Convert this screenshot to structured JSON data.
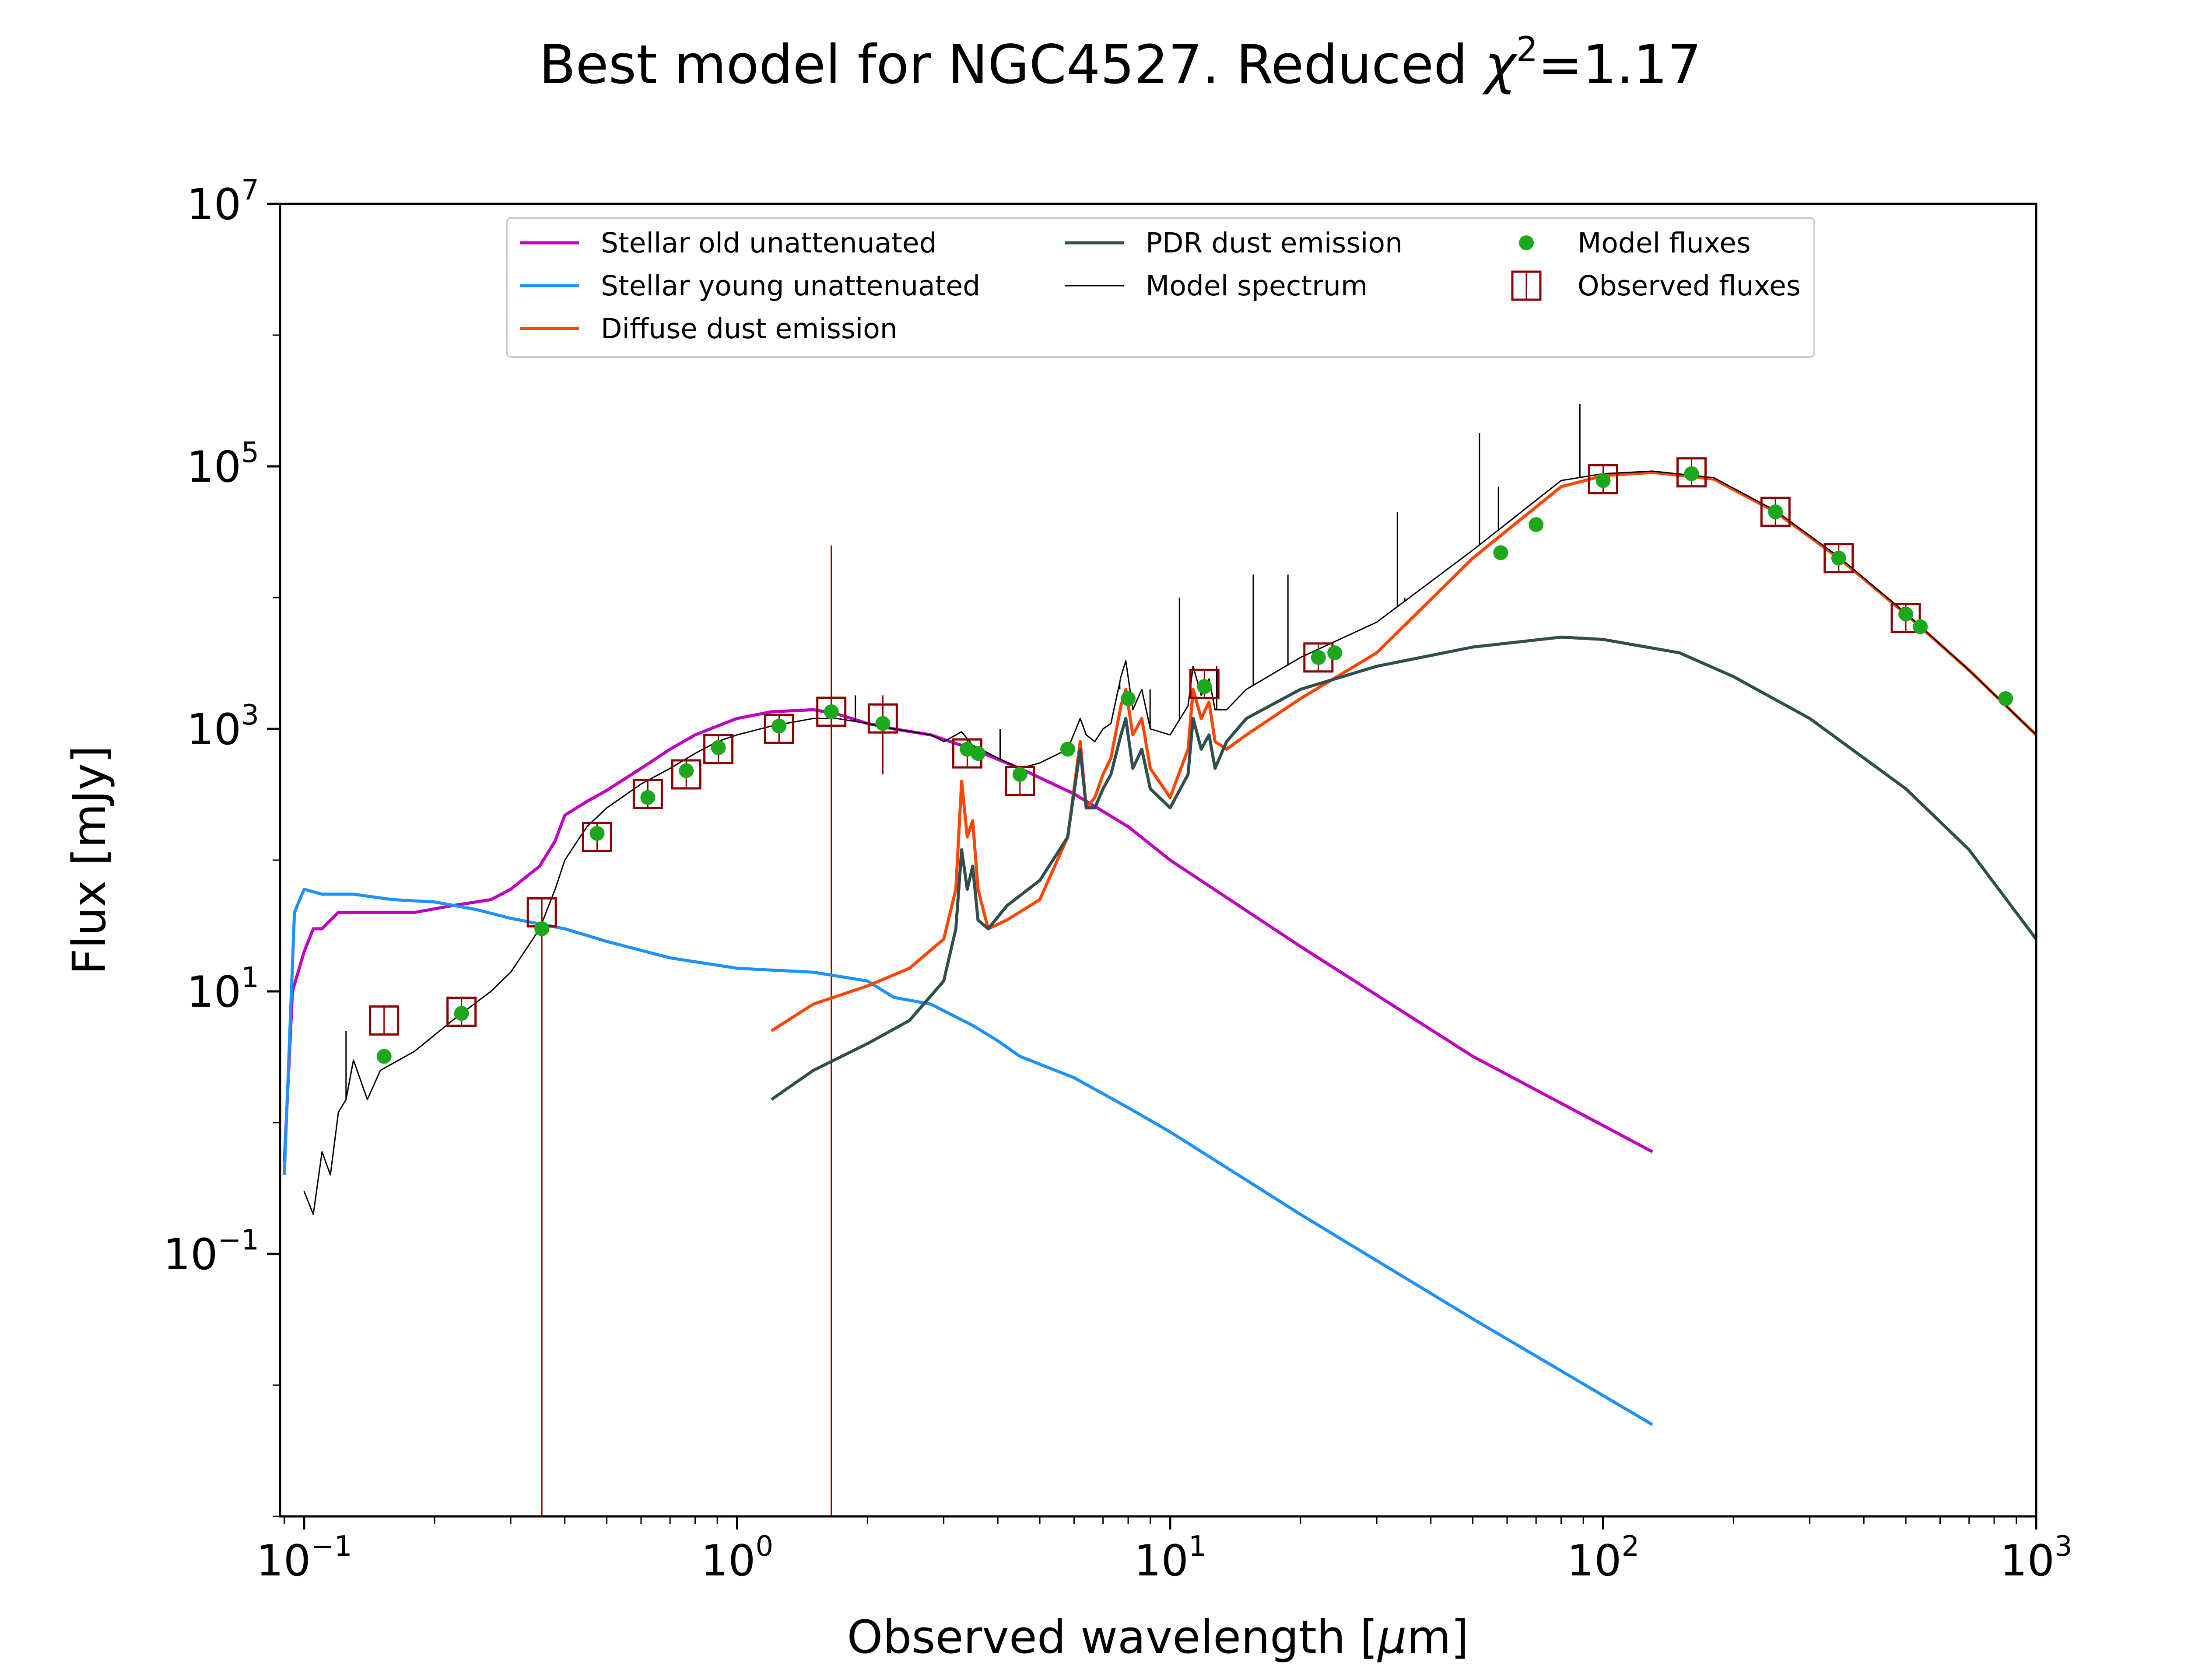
{
  "chart_data": {
    "type": "line",
    "title": "Best model for NGC4527. Reduced χ²=1.17",
    "title_parts": {
      "prefix": "Best model for NGC4527. Reduced ",
      "chi": "χ",
      "sup": "2",
      "suffix": "=1.17"
    },
    "xlabel": "Observed wavelength [μm]",
    "xlabel_parts": {
      "prefix": "Observed wavelength [",
      "mu": "μ",
      "suffix": "m]"
    },
    "ylabel": "Flux [mJy]",
    "xscale": "log",
    "yscale": "log",
    "xlim": [
      0.088,
      1000
    ],
    "ylim": [
      0.001,
      10000000
    ],
    "grid": false,
    "legend_position": "upper center",
    "x_ticks": [
      {
        "value": 0.1,
        "base": "10",
        "exp": "−1"
      },
      {
        "value": 1,
        "base": "10",
        "exp": "0"
      },
      {
        "value": 10,
        "base": "10",
        "exp": "1"
      },
      {
        "value": 100,
        "base": "10",
        "exp": "2"
      },
      {
        "value": 1000,
        "base": "10",
        "exp": "3"
      }
    ],
    "y_ticks": [
      {
        "value": 0.1,
        "base": "10",
        "exp": "−1"
      },
      {
        "value": 10,
        "base": "10",
        "exp": "1"
      },
      {
        "value": 1000,
        "base": "10",
        "exp": "3"
      },
      {
        "value": 100000,
        "base": "10",
        "exp": "5"
      },
      {
        "value": 10000000,
        "base": "10",
        "exp": "7"
      }
    ],
    "legend": [
      {
        "label": "Stellar old unattenuated",
        "kind": "line",
        "color": "#bf00bf"
      },
      {
        "label": "Stellar young unattenuated",
        "kind": "line",
        "color": "#1e90ff"
      },
      {
        "label": "Diffuse dust emission",
        "kind": "line",
        "color": "#ff4500"
      },
      {
        "label": "PDR dust emission",
        "kind": "line",
        "color": "#2f4f4f"
      },
      {
        "label": "Model spectrum",
        "kind": "thin-line",
        "color": "#000000"
      },
      {
        "label": "Model fluxes",
        "kind": "dot",
        "color": "#1ca81c"
      },
      {
        "label": "Observed fluxes",
        "kind": "square",
        "color": "#8b0000"
      }
    ],
    "series": [
      {
        "name": "Stellar old unattenuated",
        "color": "#bf00bf",
        "x": [
          0.09,
          0.094,
          0.1,
          0.105,
          0.11,
          0.12,
          0.13,
          0.15,
          0.18,
          0.22,
          0.27,
          0.3,
          0.35,
          0.38,
          0.4,
          0.45,
          0.5,
          0.6,
          0.7,
          0.8,
          0.9,
          1.0,
          1.2,
          1.5,
          1.7,
          2.0,
          2.3,
          2.8,
          3.5,
          4.5,
          6,
          8,
          10,
          20,
          50,
          130
        ],
        "y": [
          0.5,
          10,
          20,
          30,
          30,
          40,
          40,
          40,
          40,
          45,
          50,
          60,
          90,
          140,
          220,
          280,
          340,
          500,
          700,
          900,
          1050,
          1200,
          1350,
          1400,
          1300,
          1100,
          1000,
          900,
          700,
          500,
          320,
          180,
          100,
          22,
          3.2,
          0.6
        ]
      },
      {
        "name": "Stellar young unattenuated",
        "color": "#1e90ff",
        "x": [
          0.09,
          0.095,
          0.1,
          0.11,
          0.13,
          0.16,
          0.2,
          0.25,
          0.3,
          0.4,
          0.5,
          0.7,
          1.0,
          1.5,
          2.0,
          2.3,
          2.8,
          3.5,
          4.0,
          4.5,
          6,
          8,
          10,
          20,
          50,
          130
        ],
        "y": [
          0.4,
          40,
          60,
          55,
          55,
          50,
          48,
          42,
          36,
          30,
          24,
          18,
          15,
          14,
          12,
          9,
          8,
          5.5,
          4.2,
          3.2,
          2.2,
          1.3,
          0.85,
          0.2,
          0.032,
          0.005
        ]
      },
      {
        "name": "Diffuse dust emission",
        "color": "#ff4500",
        "x": [
          1.2,
          1.5,
          2.0,
          2.5,
          3.0,
          3.2,
          3.3,
          3.4,
          3.5,
          3.6,
          3.8,
          4.2,
          5.0,
          5.8,
          6.2,
          6.4,
          6.7,
          7.0,
          7.3,
          7.7,
          7.9,
          8.2,
          8.6,
          9.0,
          10.0,
          11.0,
          11.3,
          11.8,
          12.3,
          12.7,
          13.5,
          15,
          20,
          30,
          50,
          80,
          100,
          130,
          180,
          250,
          350,
          500,
          700,
          1000
        ],
        "y": [
          5,
          8,
          11,
          15,
          25,
          60,
          400,
          150,
          200,
          60,
          30,
          35,
          50,
          150,
          800,
          250,
          300,
          450,
          600,
          1500,
          2000,
          900,
          1200,
          500,
          300,
          700,
          2000,
          1200,
          1600,
          800,
          700,
          900,
          1700,
          3800,
          20000,
          70000,
          85000,
          90000,
          80000,
          45000,
          20000,
          7500,
          2800,
          900
        ]
      },
      {
        "name": "PDR dust emission",
        "color": "#2f4f4f",
        "x": [
          1.2,
          1.5,
          2.0,
          2.5,
          3.0,
          3.2,
          3.3,
          3.4,
          3.5,
          3.6,
          3.8,
          4.2,
          5.0,
          5.8,
          6.2,
          6.4,
          6.7,
          7.0,
          7.3,
          7.7,
          7.9,
          8.2,
          8.6,
          9.0,
          10.0,
          11.0,
          11.3,
          11.8,
          12.3,
          12.7,
          13.5,
          15,
          20,
          30,
          50,
          80,
          100,
          150,
          200,
          300,
          500,
          700,
          1000
        ],
        "y": [
          1.5,
          2.5,
          4,
          6,
          12,
          30,
          120,
          60,
          90,
          35,
          30,
          45,
          70,
          150,
          700,
          250,
          250,
          350,
          450,
          900,
          1200,
          500,
          700,
          350,
          250,
          450,
          1200,
          700,
          900,
          500,
          800,
          1200,
          2000,
          3000,
          4200,
          5000,
          4800,
          3800,
          2500,
          1200,
          350,
          120,
          25
        ]
      },
      {
        "name": "Model spectrum",
        "color": "#000000",
        "x": [
          0.1,
          0.105,
          0.11,
          0.115,
          0.12,
          0.125,
          0.13,
          0.14,
          0.15,
          0.18,
          0.22,
          0.27,
          0.3,
          0.35,
          0.38,
          0.4,
          0.45,
          0.5,
          0.6,
          0.7,
          0.8,
          0.9,
          1.0,
          1.2,
          1.5,
          1.7,
          2.0,
          2.3,
          2.8,
          3.0,
          3.3,
          3.5,
          4.0,
          4.5,
          5.0,
          5.8,
          6.2,
          6.4,
          6.7,
          7.0,
          7.3,
          7.7,
          7.9,
          8.2,
          8.6,
          9.0,
          10.0,
          11.0,
          11.3,
          11.8,
          12.3,
          12.7,
          13.5,
          15,
          20,
          30,
          50,
          80,
          100,
          130,
          180,
          250,
          350,
          500,
          700,
          1000
        ],
        "y": [
          0.3,
          0.2,
          0.6,
          0.4,
          1.2,
          1.5,
          3,
          1.5,
          2.5,
          3.5,
          6,
          10,
          14,
          30,
          60,
          100,
          180,
          250,
          380,
          500,
          650,
          800,
          900,
          1050,
          1200,
          1200,
          1100,
          1000,
          900,
          800,
          950,
          750,
          600,
          500,
          550,
          700,
          1200,
          900,
          800,
          1000,
          1100,
          2500,
          3300,
          1400,
          2000,
          1000,
          900,
          1500,
          3000,
          1800,
          2400,
          1400,
          1400,
          2000,
          3500,
          6500,
          23000,
          78000,
          88000,
          92000,
          82000,
          46000,
          20500,
          7600,
          2800,
          900
        ]
      }
    ],
    "spectral_lines": [
      {
        "x": 0.125,
        "y_top": 5
      },
      {
        "x": 1.875,
        "y_top": 1800
      },
      {
        "x": 4.05,
        "y_top": 1000
      },
      {
        "x": 7.65,
        "y_top": 2000
      },
      {
        "x": 8.99,
        "y_top": 2000
      },
      {
        "x": 10.51,
        "y_top": 10000
      },
      {
        "x": 12.81,
        "y_top": 3000
      },
      {
        "x": 15.56,
        "y_top": 15000
      },
      {
        "x": 18.71,
        "y_top": 15000
      },
      {
        "x": 33.48,
        "y_top": 45000
      },
      {
        "x": 34.82,
        "y_top": 10000
      },
      {
        "x": 51.8,
        "y_top": 180000
      },
      {
        "x": 57.3,
        "y_top": 70000
      },
      {
        "x": 88.36,
        "y_top": 300000
      }
    ],
    "model_fluxes": {
      "x": [
        0.153,
        0.231,
        0.354,
        0.475,
        0.622,
        0.763,
        0.905,
        1.25,
        1.65,
        2.17,
        3.4,
        3.6,
        4.5,
        5.8,
        8.0,
        12.0,
        22.0,
        24.0,
        58.0,
        70.0,
        100.0,
        160.0,
        250.0,
        350.0,
        500.0,
        540.0,
        850.0
      ],
      "y": [
        3.2,
        6.8,
        30,
        160,
        300,
        480,
        720,
        1050,
        1350,
        1100,
        700,
        650,
        450,
        700,
        1700,
        2100,
        3500,
        3800,
        22000,
        36000,
        78000,
        88000,
        45000,
        20000,
        7500,
        6000,
        1700
      ]
    },
    "observed_fluxes": {
      "x": [
        0.153,
        0.231,
        0.354,
        0.475,
        0.622,
        0.763,
        0.905,
        1.25,
        1.65,
        2.17,
        3.4,
        4.5,
        12.0,
        22.0,
        100.0,
        160.0,
        250.0,
        350.0,
        500.0
      ],
      "y": [
        6,
        7,
        40,
        150,
        320,
        450,
        700,
        1000,
        1350,
        1200,
        650,
        400,
        2200,
        3500,
        80000,
        90000,
        45000,
        20000,
        7000
      ],
      "error_extents": [
        {
          "x": 0.354,
          "low": 0.001,
          "high": 40
        },
        {
          "x": 1.65,
          "low": 0.001,
          "high": 25000
        },
        {
          "x": 2.17,
          "low": 450,
          "high": 1800
        },
        {
          "x": 1.25,
          "low": 800,
          "high": 1250
        },
        {
          "x": 0.905,
          "low": 550,
          "high": 850
        }
      ]
    }
  }
}
